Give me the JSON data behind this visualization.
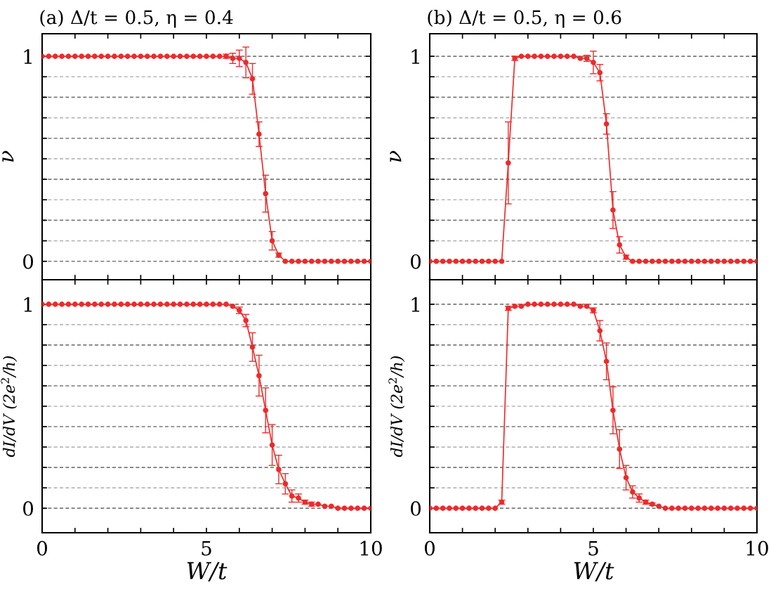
{
  "chart_data": [
    {
      "type": "line",
      "title": "(a) Δ/t = 0.5, η = 0.4",
      "ylabel": "ν",
      "xlim": [
        0,
        10
      ],
      "ylim": [
        -0.09,
        1.11
      ],
      "xticks": [
        0,
        {
          "value": 1,
          "label": null
        },
        {
          "value": 2,
          "label": null
        },
        {
          "value": 3,
          "label": null
        },
        {
          "value": 4,
          "label": null
        },
        5,
        {
          "value": 6,
          "label": null
        },
        {
          "value": 7,
          "label": null
        },
        {
          "value": 8,
          "label": null
        },
        {
          "value": 9,
          "label": null
        },
        10
      ],
      "yticks": [
        0,
        {
          "value": 0.1,
          "label": null
        },
        {
          "value": 0.2,
          "label": null
        },
        {
          "value": 0.3,
          "label": null
        },
        {
          "value": 0.4,
          "label": null
        },
        {
          "value": 0.5,
          "label": null
        },
        {
          "value": 0.6,
          "label": null
        },
        {
          "value": 0.7,
          "label": null
        },
        {
          "value": 0.8,
          "label": null
        },
        {
          "value": 0.9,
          "label": null
        },
        1
      ],
      "tick_labels": "y",
      "grid": "y",
      "marker": "circle",
      "line_style": "solid",
      "x": [
        0,
        0.2,
        0.4,
        0.6,
        0.8,
        1,
        1.2,
        1.4,
        1.6,
        1.8,
        2,
        2.2,
        2.4,
        2.6,
        2.8,
        3,
        3.2,
        3.4,
        3.6,
        3.8,
        4,
        4.2,
        4.4,
        4.6,
        4.8,
        5,
        5.2,
        5.4,
        5.6,
        5.8,
        6,
        6.2,
        6.4,
        6.6,
        6.8,
        7,
        7.2,
        7.4,
        7.6,
        7.8,
        8,
        8.2,
        8.4,
        8.6,
        8.8,
        9,
        9.2,
        9.4,
        9.6,
        9.8,
        10
      ],
      "series": [
        {
          "color": "#ee2a2a",
          "values": [
            1,
            1,
            1,
            1,
            1,
            1,
            1,
            1,
            1,
            1,
            1,
            1,
            1,
            1,
            1,
            1,
            1,
            1,
            1,
            1,
            1,
            1,
            1,
            1,
            1,
            1,
            1,
            1,
            1,
            0.99,
            0.99,
            0.97,
            0.89,
            0.62,
            0.33,
            0.1,
            0.03,
            0,
            0,
            0,
            0,
            0,
            0,
            0,
            0,
            0,
            0,
            0,
            0,
            0,
            0
          ],
          "errors": [
            null,
            null,
            null,
            null,
            null,
            null,
            null,
            null,
            null,
            null,
            null,
            null,
            null,
            null,
            null,
            null,
            null,
            null,
            null,
            null,
            null,
            null,
            null,
            null,
            null,
            null,
            null,
            null,
            0.01,
            0.025,
            0.04,
            0.075,
            0.075,
            0.06,
            0.09,
            0.045,
            0.01,
            null,
            null,
            null,
            null,
            null,
            null,
            null,
            null,
            null,
            null,
            null,
            null,
            null,
            null
          ]
        }
      ]
    },
    {
      "type": "line",
      "title": "(b) Δ/t = 0.5, η = 0.6",
      "ylabel": "ν",
      "xlim": [
        0,
        10
      ],
      "ylim": [
        -0.09,
        1.11
      ],
      "xticks": [
        0,
        {
          "value": 1,
          "label": null
        },
        {
          "value": 2,
          "label": null
        },
        {
          "value": 3,
          "label": null
        },
        {
          "value": 4,
          "label": null
        },
        5,
        {
          "value": 6,
          "label": null
        },
        {
          "value": 7,
          "label": null
        },
        {
          "value": 8,
          "label": null
        },
        {
          "value": 9,
          "label": null
        },
        10
      ],
      "yticks": [
        0,
        {
          "value": 0.1,
          "label": null
        },
        {
          "value": 0.2,
          "label": null
        },
        {
          "value": 0.3,
          "label": null
        },
        {
          "value": 0.4,
          "label": null
        },
        {
          "value": 0.5,
          "label": null
        },
        {
          "value": 0.6,
          "label": null
        },
        {
          "value": 0.7,
          "label": null
        },
        {
          "value": 0.8,
          "label": null
        },
        {
          "value": 0.9,
          "label": null
        },
        1
      ],
      "tick_labels": "y",
      "grid": "y",
      "marker": "circle",
      "line_style": "solid",
      "x": [
        0,
        0.2,
        0.4,
        0.6,
        0.8,
        1,
        1.2,
        1.4,
        1.6,
        1.8,
        2,
        2.2,
        2.4,
        2.6,
        2.8,
        3,
        3.2,
        3.4,
        3.6,
        3.8,
        4,
        4.2,
        4.4,
        4.6,
        4.8,
        5,
        5.2,
        5.4,
        5.6,
        5.8,
        6,
        6.2,
        6.4,
        6.6,
        6.8,
        7,
        7.2,
        7.4,
        7.6,
        7.8,
        8,
        8.2,
        8.4,
        8.6,
        8.8,
        9,
        9.2,
        9.4,
        9.6,
        9.8,
        10
      ],
      "series": [
        {
          "color": "#ee2a2a",
          "values": [
            0,
            0,
            0,
            0,
            0,
            0,
            0,
            0,
            0,
            0,
            0,
            0,
            0.48,
            0.99,
            1,
            1,
            1,
            1,
            1,
            1,
            1,
            1,
            1,
            0.99,
            0.99,
            0.97,
            0.92,
            0.67,
            0.25,
            0.08,
            0.02,
            0,
            0,
            0,
            0,
            0,
            0,
            0,
            0,
            0,
            0,
            0,
            0,
            0,
            0,
            0,
            0,
            0,
            0,
            0,
            0
          ],
          "errors": [
            null,
            null,
            null,
            null,
            null,
            null,
            null,
            null,
            null,
            null,
            null,
            null,
            0.2,
            0.01,
            null,
            null,
            null,
            null,
            null,
            null,
            null,
            null,
            null,
            null,
            0.015,
            0.055,
            0.04,
            0.05,
            0.09,
            0.04,
            0.01,
            null,
            null,
            null,
            null,
            null,
            null,
            null,
            null,
            null,
            null,
            null,
            null,
            null,
            null,
            null,
            null,
            null,
            null,
            null,
            null
          ]
        }
      ]
    },
    {
      "type": "line",
      "xlabel": "W/t",
      "ylabel": "dI/dV (2e$^{2}$/h)",
      "xlim": [
        0,
        10
      ],
      "ylim": [
        -0.12,
        1.12
      ],
      "xticks": [
        0,
        {
          "value": 1,
          "label": null
        },
        {
          "value": 2,
          "label": null
        },
        {
          "value": 3,
          "label": null
        },
        {
          "value": 4,
          "label": null
        },
        5,
        {
          "value": 6,
          "label": null
        },
        {
          "value": 7,
          "label": null
        },
        {
          "value": 8,
          "label": null
        },
        {
          "value": 9,
          "label": null
        },
        10
      ],
      "yticks": [
        0,
        {
          "value": 0.1,
          "label": null
        },
        {
          "value": 0.2,
          "label": null
        },
        {
          "value": 0.3,
          "label": null
        },
        {
          "value": 0.4,
          "label": null
        },
        {
          "value": 0.5,
          "label": null
        },
        {
          "value": 0.6,
          "label": null
        },
        {
          "value": 0.7,
          "label": null
        },
        {
          "value": 0.8,
          "label": null
        },
        {
          "value": 0.9,
          "label": null
        },
        1
      ],
      "grid": "y",
      "marker": "circle",
      "line_style": "solid",
      "x": [
        0,
        0.2,
        0.4,
        0.6,
        0.8,
        1,
        1.2,
        1.4,
        1.6,
        1.8,
        2,
        2.2,
        2.4,
        2.6,
        2.8,
        3,
        3.2,
        3.4,
        3.6,
        3.8,
        4,
        4.2,
        4.4,
        4.6,
        4.8,
        5,
        5.2,
        5.4,
        5.6,
        5.8,
        6,
        6.2,
        6.4,
        6.6,
        6.8,
        7,
        7.2,
        7.4,
        7.6,
        7.8,
        8,
        8.2,
        8.4,
        8.6,
        8.8,
        9,
        9.2,
        9.4,
        9.6,
        9.8,
        10
      ],
      "series": [
        {
          "color": "#ee2a2a",
          "values": [
            1,
            1,
            1,
            1,
            1,
            1,
            1,
            1,
            1,
            1,
            1,
            1,
            1,
            1,
            1,
            1,
            1,
            1,
            1,
            1,
            1,
            1,
            1,
            1,
            1,
            1,
            1,
            1,
            1,
            0.99,
            0.97,
            0.92,
            0.79,
            0.65,
            0.48,
            0.31,
            0.19,
            0.12,
            0.06,
            0.05,
            0.03,
            0.02,
            0.02,
            0.01,
            0.01,
            0,
            0,
            0,
            0,
            0,
            0
          ],
          "errors": [
            null,
            null,
            null,
            null,
            null,
            null,
            null,
            null,
            null,
            null,
            null,
            null,
            null,
            null,
            null,
            null,
            null,
            null,
            null,
            null,
            null,
            null,
            null,
            null,
            null,
            null,
            null,
            null,
            null,
            null,
            0.016,
            0.03,
            0.07,
            0.1,
            0.11,
            0.1,
            0.07,
            0.05,
            0.03,
            0.02,
            0.01,
            0.01,
            null,
            null,
            null,
            null,
            null,
            null,
            null,
            null,
            null
          ]
        }
      ]
    },
    {
      "type": "line",
      "xlabel": "W/t",
      "ylabel": "dI/dV (2e$^{2}$/h)",
      "xlim": [
        0,
        10
      ],
      "ylim": [
        -0.12,
        1.12
      ],
      "xticks": [
        0,
        {
          "value": 1,
          "label": null
        },
        {
          "value": 2,
          "label": null
        },
        {
          "value": 3,
          "label": null
        },
        {
          "value": 4,
          "label": null
        },
        5,
        {
          "value": 6,
          "label": null
        },
        {
          "value": 7,
          "label": null
        },
        {
          "value": 8,
          "label": null
        },
        {
          "value": 9,
          "label": null
        },
        10
      ],
      "yticks": [
        0,
        {
          "value": 0.1,
          "label": null
        },
        {
          "value": 0.2,
          "label": null
        },
        {
          "value": 0.3,
          "label": null
        },
        {
          "value": 0.4,
          "label": null
        },
        {
          "value": 0.5,
          "label": null
        },
        {
          "value": 0.6,
          "label": null
        },
        {
          "value": 0.7,
          "label": null
        },
        {
          "value": 0.8,
          "label": null
        },
        {
          "value": 0.9,
          "label": null
        },
        1
      ],
      "grid": "y",
      "marker": "circle",
      "line_style": "solid",
      "x": [
        0,
        0.2,
        0.4,
        0.6,
        0.8,
        1,
        1.2,
        1.4,
        1.6,
        1.8,
        2,
        2.2,
        2.4,
        2.6,
        2.8,
        3,
        3.2,
        3.4,
        3.6,
        3.8,
        4,
        4.2,
        4.4,
        4.6,
        4.8,
        5,
        5.2,
        5.4,
        5.6,
        5.8,
        6,
        6.2,
        6.4,
        6.6,
        6.8,
        7,
        7.2,
        7.4,
        7.6,
        7.8,
        8,
        8.2,
        8.4,
        8.6,
        8.8,
        9,
        9.2,
        9.4,
        9.6,
        9.8,
        10
      ],
      "series": [
        {
          "color": "#ee2a2a",
          "values": [
            0,
            0,
            0,
            0,
            0,
            0,
            0,
            0,
            0,
            0,
            0,
            0.03,
            0.98,
            0.99,
            0.99,
            1,
            1,
            1,
            1,
            1,
            1,
            1,
            1,
            0.99,
            0.99,
            0.97,
            0.87,
            0.72,
            0.48,
            0.29,
            0.15,
            0.08,
            0.05,
            0.03,
            0.02,
            0.01,
            0,
            0,
            0,
            0,
            0,
            0,
            0,
            0,
            0,
            0,
            0,
            0,
            0,
            0,
            0
          ],
          "errors": [
            null,
            null,
            null,
            null,
            null,
            null,
            null,
            null,
            null,
            null,
            null,
            0.01,
            0.01,
            null,
            null,
            null,
            null,
            null,
            null,
            null,
            null,
            null,
            null,
            null,
            null,
            0.012,
            0.05,
            0.09,
            0.115,
            0.095,
            0.06,
            0.03,
            0.02,
            0.01,
            0.006,
            null,
            null,
            null,
            null,
            null,
            null,
            null,
            null,
            null,
            null,
            null,
            null,
            null,
            null,
            null,
            null
          ]
        }
      ]
    }
  ]
}
